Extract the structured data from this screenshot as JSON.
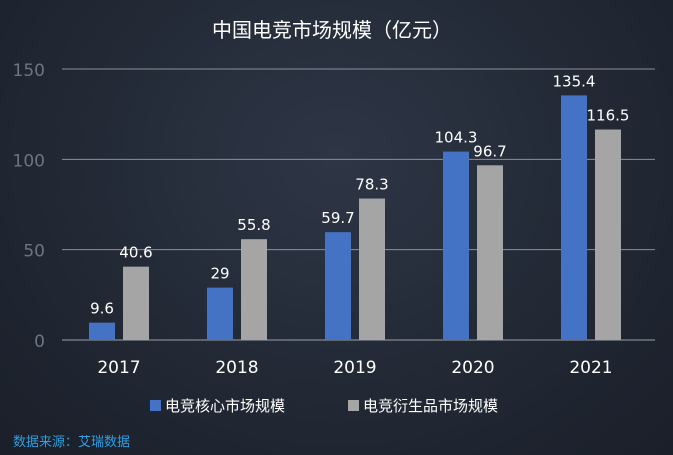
{
  "chart_data": {
    "type": "bar",
    "title": "中国电竞市场规模（亿元）",
    "categories": [
      "2017",
      "2018",
      "2019",
      "2020",
      "2021"
    ],
    "series": [
      {
        "name": "电竞核心市场规模",
        "values": [
          9.6,
          29,
          59.7,
          104.3,
          135.4
        ],
        "color": "#4472c4"
      },
      {
        "name": "电竞衍生品市场规模",
        "values": [
          40.6,
          55.8,
          78.3,
          96.7,
          116.5
        ],
        "color": "#a5a5a5"
      }
    ],
    "data_labels": [
      [
        "9.6",
        "29",
        "59.7",
        "104.3",
        "135.4"
      ],
      [
        "40.6",
        "55.8",
        "78.3",
        "96.7",
        "116.5"
      ]
    ],
    "ylim": [
      0,
      150
    ],
    "yticks": [
      "0",
      "50",
      "100",
      "150"
    ],
    "grid": true,
    "legend": "bottom",
    "xlabel": "",
    "ylabel": ""
  },
  "source": "数据来源：艾瑞数据"
}
